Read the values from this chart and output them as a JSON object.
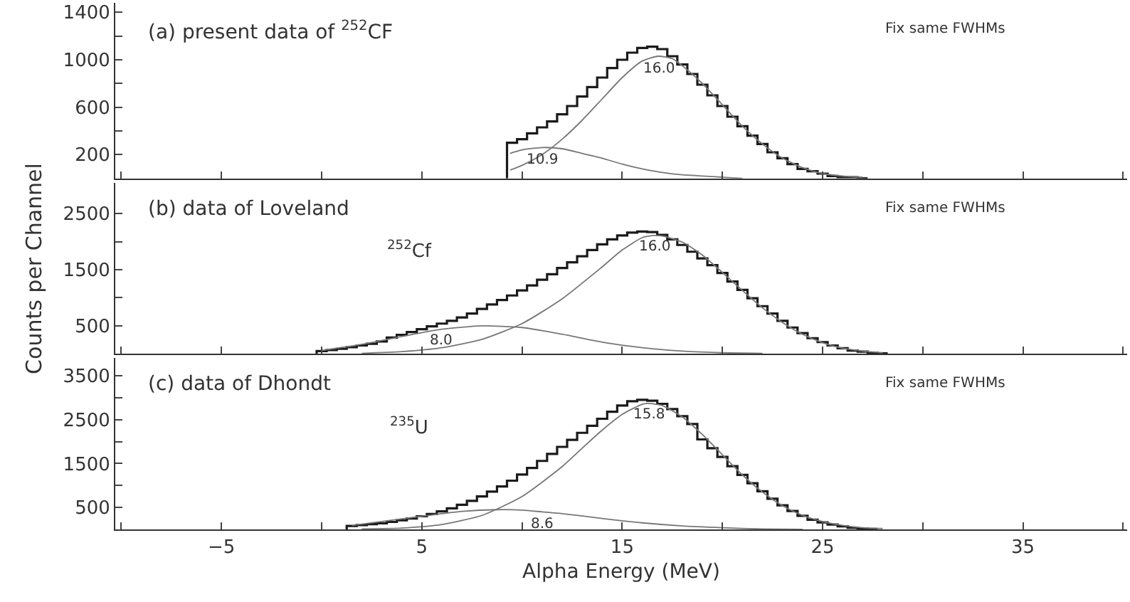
{
  "chart_data": [
    {
      "type": "histogram",
      "title": "(a) present data of $^{252}$CF",
      "xlim": [
        -10.3,
        40.2
      ],
      "ylim": [
        0,
        1480
      ],
      "xticks": [
        -10,
        -5,
        0,
        5,
        10,
        15,
        20,
        25,
        30,
        35,
        40
      ],
      "yticks": [
        200,
        {
          "value": 400,
          "label": null
        },
        600,
        {
          "value": 800,
          "label": null
        },
        1000,
        {
          "value": 1200,
          "label": null
        },
        1400
      ],
      "tick_labels": "y",
      "series": [
        {
          "color": "#1a1a1a",
          "bins": [
            9.25,
            9.75,
            10.25,
            10.75,
            11.25,
            11.75,
            12.25,
            12.75,
            13.25,
            13.75,
            14.25,
            14.75,
            15.25,
            15.75,
            16.25,
            16.75,
            17.25,
            17.75,
            18.25,
            18.75,
            19.25,
            19.75,
            20.25,
            20.75,
            21.25,
            21.75,
            22.25,
            22.75,
            23.25,
            23.75,
            24.25,
            24.75,
            25.25,
            25.75,
            26.25,
            26.75,
            27.25
          ],
          "values": [
            300,
            330,
            380,
            430,
            480,
            540,
            610,
            690,
            770,
            850,
            930,
            1000,
            1060,
            1100,
            1110,
            1090,
            1030,
            960,
            880,
            790,
            700,
            610,
            520,
            440,
            360,
            290,
            220,
            170,
            120,
            80,
            60,
            40,
            20,
            10,
            10,
            0
          ]
        },
        {
          "type": "line",
          "color": "#777777",
          "x": [
            9.4,
            10,
            11,
            12,
            13,
            14,
            15,
            16,
            16.8,
            17.5,
            18,
            19,
            20,
            21,
            22,
            23,
            24,
            25,
            26,
            27
          ],
          "values": [
            70,
            110,
            200,
            330,
            490,
            670,
            850,
            990,
            1030,
            1010,
            950,
            800,
            620,
            440,
            290,
            170,
            90,
            40,
            20,
            10
          ]
        },
        {
          "type": "line",
          "color": "#777777",
          "x": [
            9.4,
            10,
            11,
            12,
            13,
            14,
            15,
            16,
            17,
            18,
            19,
            20,
            21
          ],
          "values": [
            210,
            240,
            260,
            250,
            210,
            170,
            120,
            80,
            50,
            30,
            20,
            10,
            0
          ]
        }
      ],
      "annotations": [
        "Fix same FWHMs",
        {
          "text": "16.0",
          "x": 16.8,
          "y": 1030
        },
        {
          "text": "10.9",
          "x": 11,
          "y": 260
        }
      ]
    },
    {
      "type": "histogram",
      "title": "(b) data of Loveland",
      "ylabel": "Counts per Channel",
      "xlim": [
        -10.3,
        40.2
      ],
      "ylim": [
        0,
        3050
      ],
      "xticks": [
        -10,
        -5,
        0,
        5,
        10,
        15,
        20,
        25,
        30,
        35,
        40
      ],
      "yticks": [
        500,
        {
          "value": 1000,
          "label": null
        },
        1500,
        {
          "value": 2000,
          "label": null
        },
        2500
      ],
      "tick_labels": "y",
      "series": [
        {
          "color": "#1a1a1a",
          "bins": [
            -0.25,
            0.25,
            0.75,
            1.25,
            1.75,
            2.25,
            2.75,
            3.25,
            3.75,
            4.25,
            4.75,
            5.25,
            5.75,
            6.25,
            6.75,
            7.25,
            7.75,
            8.25,
            8.75,
            9.25,
            9.75,
            10.25,
            10.75,
            11.25,
            11.75,
            12.25,
            12.75,
            13.25,
            13.75,
            14.25,
            14.75,
            15.25,
            15.75,
            16.25,
            16.75,
            17.25,
            17.75,
            18.25,
            18.75,
            19.25,
            19.75,
            20.25,
            20.75,
            21.25,
            21.75,
            22.25,
            22.75,
            23.25,
            23.75,
            24.25,
            24.75,
            25.25,
            25.75,
            26.25,
            26.75,
            27.25,
            27.75,
            28.25
          ],
          "values": [
            50,
            70,
            90,
            120,
            150,
            180,
            220,
            290,
            340,
            390,
            440,
            490,
            540,
            590,
            650,
            720,
            800,
            880,
            960,
            1040,
            1130,
            1220,
            1320,
            1420,
            1530,
            1630,
            1740,
            1850,
            1950,
            2040,
            2110,
            2160,
            2180,
            2170,
            2120,
            2040,
            1940,
            1820,
            1700,
            1580,
            1440,
            1290,
            1140,
            990,
            850,
            720,
            590,
            470,
            370,
            280,
            210,
            150,
            100,
            60,
            40,
            20,
            10
          ]
        },
        {
          "type": "line",
          "color": "#777777",
          "x": [
            2,
            4,
            6,
            8,
            10,
            12,
            14,
            15,
            16,
            16.6,
            17,
            18,
            19,
            20,
            21,
            22,
            23,
            24,
            25,
            26,
            27,
            28
          ],
          "values": [
            10,
            40,
            110,
            260,
            540,
            980,
            1550,
            1850,
            2070,
            2110,
            2100,
            1990,
            1760,
            1450,
            1130,
            820,
            560,
            350,
            200,
            100,
            50,
            20
          ]
        },
        {
          "type": "line",
          "color": "#777777",
          "x": [
            0,
            2,
            4,
            6,
            8,
            10,
            12,
            14,
            16,
            18,
            20,
            22
          ],
          "values": [
            60,
            170,
            310,
            440,
            500,
            470,
            350,
            210,
            110,
            50,
            20,
            10
          ]
        }
      ],
      "annotations": [
        "Fix same FWHMs",
        "$^{252}$Cf",
        {
          "text": "16.0",
          "x": 16.6,
          "y": 2110
        },
        {
          "text": "8.0",
          "x": 6,
          "y": 440
        }
      ]
    },
    {
      "type": "histogram",
      "title": "(c) data of Dhondt",
      "xlabel": "Alpha Energy (MeV)",
      "xlim": [
        -10.3,
        40.2
      ],
      "ylim": [
        0,
        3900
      ],
      "xticks": [
        {
          "value": -10,
          "label": null
        },
        -5,
        {
          "value": 0,
          "label": null
        },
        5,
        {
          "value": 10,
          "label": null
        },
        15,
        {
          "value": 20,
          "label": null
        },
        25,
        {
          "value": 30,
          "label": null
        },
        35,
        {
          "value": 40,
          "label": null
        }
      ],
      "yticks": [
        500,
        {
          "value": 1000,
          "label": null
        },
        1500,
        {
          "value": 2000,
          "label": null
        },
        2500,
        {
          "value": 3000,
          "label": null
        },
        3500
      ],
      "series": [
        {
          "color": "#1a1a1a",
          "bins": [
            1.25,
            1.75,
            2.25,
            2.75,
            3.25,
            3.75,
            4.25,
            4.75,
            5.25,
            5.75,
            6.25,
            6.75,
            7.25,
            7.75,
            8.25,
            8.75,
            9.25,
            9.75,
            10.25,
            10.75,
            11.25,
            11.75,
            12.25,
            12.75,
            13.25,
            13.75,
            14.25,
            14.75,
            15.25,
            15.75,
            16.25,
            16.75,
            17.25,
            17.75,
            18.25,
            18.75,
            19.25,
            19.75,
            20.25,
            20.75,
            21.25,
            21.75,
            22.25,
            22.75,
            23.25,
            23.75,
            24.25,
            24.75,
            25.25,
            25.75,
            26.25,
            26.75,
            27.25,
            27.75
          ],
          "values": [
            80,
            100,
            120,
            140,
            170,
            210,
            250,
            300,
            350,
            410,
            480,
            560,
            650,
            750,
            860,
            980,
            1110,
            1250,
            1400,
            1560,
            1720,
            1880,
            2040,
            2200,
            2360,
            2520,
            2680,
            2820,
            2920,
            2950,
            2930,
            2860,
            2740,
            2580,
            2400,
            2050,
            1850,
            1650,
            1440,
            1240,
            1050,
            870,
            700,
            550,
            420,
            310,
            220,
            160,
            110,
            70,
            40,
            20,
            10
          ]
        },
        {
          "type": "line",
          "color": "#777777",
          "x": [
            2,
            4,
            6,
            8,
            10,
            12,
            13,
            14,
            15,
            16,
            16.3,
            17,
            18,
            19,
            20,
            21,
            22,
            23,
            24,
            25,
            26,
            27,
            28
          ],
          "values": [
            10,
            30,
            110,
            320,
            750,
            1430,
            1850,
            2260,
            2620,
            2850,
            2870,
            2820,
            2560,
            2160,
            1700,
            1240,
            850,
            540,
            320,
            180,
            90,
            40,
            20
          ]
        },
        {
          "type": "line",
          "color": "#777777",
          "x": [
            1.5,
            3,
            5,
            7,
            8.8,
            10,
            11,
            12,
            14,
            16,
            18,
            20,
            22,
            24
          ],
          "values": [
            90,
            180,
            300,
            410,
            450,
            440,
            400,
            360,
            250,
            150,
            80,
            40,
            10,
            0
          ]
        }
      ],
      "annotations": [
        "Fix same FWHMs",
        "$^{235}$U",
        {
          "text": "15.8",
          "x": 16.3,
          "y": 2870
        },
        {
          "text": "8.6",
          "x": 11,
          "y": 400
        }
      ]
    }
  ]
}
